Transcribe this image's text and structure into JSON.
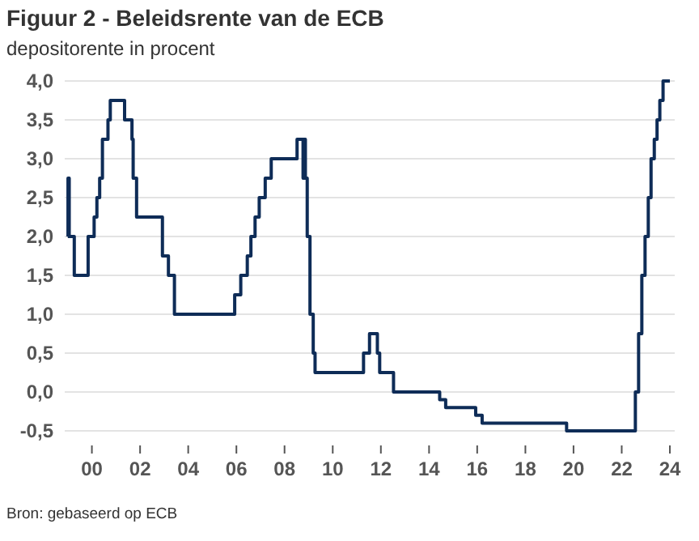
{
  "chart_data": {
    "type": "step",
    "title": "Figuur 2 - Beleidsrente van de ECB",
    "subtitle": "depositorente in procent",
    "annotations": [
      "Bron: gebaseerd op ECB"
    ],
    "x": [
      "1999-01-01",
      "1999-01-04",
      "1999-01-22",
      "1999-04-09",
      "1999-11-05",
      "2000-02-04",
      "2000-03-17",
      "2000-04-28",
      "2000-06-09",
      "2000-09-01",
      "2000-10-06",
      "2001-05-11",
      "2001-08-31",
      "2001-09-18",
      "2001-11-09",
      "2002-12-06",
      "2003-03-07",
      "2003-06-06",
      "2005-12-06",
      "2006-03-08",
      "2006-06-15",
      "2006-08-09",
      "2006-10-11",
      "2006-12-13",
      "2007-03-14",
      "2007-06-13",
      "2008-07-09",
      "2008-10-08",
      "2008-10-09",
      "2008-11-12",
      "2008-12-10",
      "2009-01-21",
      "2009-03-11",
      "2009-04-08",
      "2011-04-13",
      "2011-07-13",
      "2011-11-09",
      "2011-12-14",
      "2012-07-11",
      "2014-06-11",
      "2014-09-10",
      "2015-12-09",
      "2016-03-16",
      "2019-09-18",
      "2022-07-27",
      "2022-09-14",
      "2022-11-02",
      "2022-12-21",
      "2023-02-08",
      "2023-03-22",
      "2023-05-10",
      "2023-06-21",
      "2023-08-02",
      "2023-09-20",
      "2024-01-01"
    ],
    "series": [
      {
        "color": "#0e2c57",
        "values": [
          2.0,
          2.75,
          2.0,
          1.5,
          2.0,
          2.25,
          2.5,
          2.75,
          3.25,
          3.5,
          3.75,
          3.5,
          3.25,
          2.75,
          2.25,
          1.75,
          1.5,
          1.0,
          1.25,
          1.5,
          1.75,
          2.0,
          2.25,
          2.5,
          2.75,
          3.0,
          3.25,
          2.75,
          3.25,
          2.75,
          2.0,
          1.0,
          0.5,
          0.25,
          0.5,
          0.75,
          0.5,
          0.25,
          0.0,
          -0.1,
          -0.2,
          -0.3,
          -0.4,
          -0.5,
          0.0,
          0.75,
          1.5,
          2.0,
          2.5,
          3.0,
          3.25,
          3.5,
          3.75,
          4.0,
          4.0
        ]
      }
    ],
    "xlim": [
      "1998-11-15",
      "2024-03-15"
    ],
    "xticks": [
      {
        "value": "2000-01-01",
        "label": "00"
      },
      {
        "value": "2002-01-01",
        "label": "02"
      },
      {
        "value": "2004-01-01",
        "label": "04"
      },
      {
        "value": "2006-01-01",
        "label": "06"
      },
      {
        "value": "2008-01-01",
        "label": "08"
      },
      {
        "value": "2010-01-01",
        "label": "10"
      },
      {
        "value": "2012-01-01",
        "label": "12"
      },
      {
        "value": "2014-01-01",
        "label": "14"
      },
      {
        "value": "2016-01-01",
        "label": "16"
      },
      {
        "value": "2018-01-01",
        "label": "18"
      },
      {
        "value": "2020-01-01",
        "label": "20"
      },
      {
        "value": "2022-01-01",
        "label": "22"
      },
      {
        "value": "2024-01-01",
        "label": "24"
      }
    ],
    "ylim": [
      -0.5,
      4.0
    ],
    "yticks": [
      {
        "value": -0.5,
        "label": "-0,5"
      },
      {
        "value": 0,
        "label": "0,0"
      },
      {
        "value": 0.5,
        "label": "0,5"
      },
      {
        "value": 1,
        "label": "1,0"
      },
      {
        "value": 1.5,
        "label": "1,5"
      },
      {
        "value": 2,
        "label": "2,0"
      },
      {
        "value": 2.5,
        "label": "2,5"
      },
      {
        "value": 3,
        "label": "3,0"
      },
      {
        "value": 3.5,
        "label": "3,5"
      },
      {
        "value": 4,
        "label": "4,0"
      }
    ],
    "grid": "y"
  }
}
